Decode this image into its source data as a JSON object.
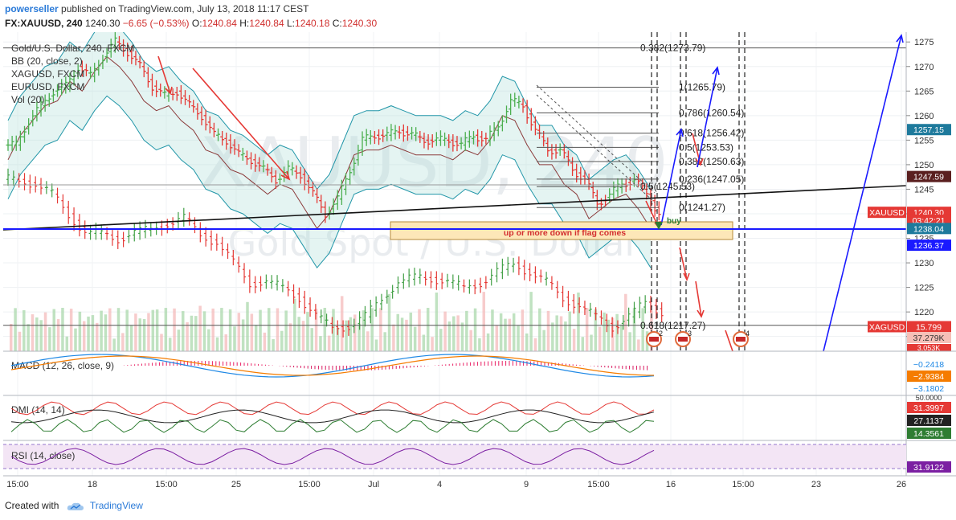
{
  "header": {
    "author": "powerseller",
    "published": "published on TradingView.com, July 13, 2018 11:17 CEST",
    "symbol": "FX:XAUUSD, 240",
    "last": "1240.30",
    "change": "−6.65 (−0.53%)",
    "o_label": "O:",
    "o_value": "1240.84",
    "h_label": "H:",
    "h_value": "1240.84",
    "l_label": "L:",
    "l_value": "1240.18",
    "c_label": "C:",
    "c_value": "1240.30"
  },
  "legend": [
    "Gold/U.S. Dollar, 240, FXCM",
    "BB (20, close, 2)",
    "XAGUSD, FXCM",
    "EURUSD, FXCM",
    "Vol (20)"
  ],
  "watermark": {
    "symbol": "XAUUSD, 240",
    "name": "Gold Spot / U.S. Dollar"
  },
  "annotations": {
    "buy": "buy",
    "zone": "up or more down if flag comes",
    "wave_labels": [
      "2",
      "3",
      "4"
    ]
  },
  "fib_levels": [
    {
      "label": "0.382(1273.79)",
      "price": 1273.79
    },
    {
      "label": "1(1265.79)",
      "price": 1265.79
    },
    {
      "label": "0.786(1260.54)",
      "price": 1260.54
    },
    {
      "label": "0.618(1256.42)",
      "price": 1256.42
    },
    {
      "label": "0.5(1253.53)",
      "price": 1253.53
    },
    {
      "label": "0.382(1250.63)",
      "price": 1250.63
    },
    {
      "label": "0.236(1247.05)",
      "price": 1247.05
    },
    {
      "label": "0.5(1245.53)",
      "price": 1245.53
    },
    {
      "label": "0(1241.27)",
      "price": 1241.27
    },
    {
      "label": "0.618(1217.27)",
      "price": 1217.27
    }
  ],
  "price_badges": [
    {
      "text": "1257.15",
      "price": 1257.15,
      "color": "#1e7a9c"
    },
    {
      "text": "1247.59",
      "price": 1247.59,
      "color": "#5a1f1f"
    },
    {
      "text": "XAUUSD",
      "price": 1240.3,
      "color": "#e53935",
      "left": true
    },
    {
      "text": "1240.30",
      "price": 1240.3,
      "color": "#e53935"
    },
    {
      "text": "03:42:21",
      "price": 1238.7,
      "color": "#e53935"
    },
    {
      "text": "1238.04",
      "price": 1237.0,
      "color": "#1e7a9c"
    },
    {
      "text": "1236.37",
      "price": 1233.6,
      "color": "#1a1aff"
    },
    {
      "text": "XAGUSD",
      "price": 1217.0,
      "color": "#e53935",
      "left": true
    },
    {
      "text": "15.799",
      "price": 1217.0,
      "color": "#e53935"
    }
  ],
  "vol_badge": {
    "text": "37.279K"
  },
  "vol_badge2": {
    "text": "3.053K"
  },
  "macd": {
    "title": "MACD (12, 26, close, 9)",
    "values": [
      {
        "text": "−0.2418",
        "color": "#1e88e5"
      },
      {
        "text": "−2.9384",
        "color": "#f57c00"
      },
      {
        "text": "−3.1802",
        "color": "#1e88e5"
      }
    ]
  },
  "dmi": {
    "title": "DMI (14, 14)",
    "scale": "50.0000",
    "values": [
      {
        "text": "31.3997",
        "color": "#e53935"
      },
      {
        "text": "27.1137",
        "color": "#222222"
      },
      {
        "text": "14.3561",
        "color": "#2e7d32"
      }
    ]
  },
  "rsi": {
    "title": "RSI (14, close)",
    "value": {
      "text": "31.9122",
      "color": "#7b1fa2"
    }
  },
  "time_axis": [
    "15:00",
    "18",
    "15:00",
    "25",
    "15:00",
    "Jul",
    "4",
    "9",
    "15:00",
    "16",
    "15:00",
    "23",
    "26"
  ],
  "footer": {
    "created": "Created with",
    "brand": "TradingView"
  },
  "chart_data": {
    "type": "candlestick",
    "title": "Gold/U.S. Dollar, 240, FXCM",
    "ylim": [
      1212,
      1277
    ],
    "yticks": [
      1215,
      1220,
      1225,
      1230,
      1235,
      1240,
      1245,
      1250,
      1255,
      1260,
      1265,
      1270,
      1275
    ],
    "x_tick_labels": [
      "15:00",
      "18",
      "15:00",
      "25",
      "15:00",
      "Jul",
      "4",
      "9",
      "15:00",
      "16",
      "15:00",
      "23",
      "26"
    ],
    "xagusd_close_path": [
      1247,
      1246,
      1244,
      1240,
      1236,
      1236,
      1235,
      1236,
      1237,
      1238,
      1239,
      1236,
      1234,
      1230,
      1226,
      1226,
      1225,
      1223,
      1219,
      1217,
      1217,
      1219,
      1223,
      1226,
      1227,
      1227,
      1226,
      1225,
      1226,
      1228,
      1230,
      1228,
      1226,
      1223,
      1221,
      1219,
      1217,
      1219,
      1222,
      1220
    ],
    "xauusd_close_path": [
      1254,
      1259,
      1262,
      1265,
      1266,
      1270,
      1268,
      1272,
      1275,
      1273,
      1270,
      1266,
      1264,
      1265,
      1262,
      1260,
      1256,
      1255,
      1252,
      1251,
      1249,
      1247,
      1249,
      1248,
      1244,
      1240,
      1243,
      1249,
      1255,
      1256,
      1256,
      1257,
      1256,
      1255,
      1255,
      1255,
      1254,
      1256,
      1255,
      1258,
      1263,
      1262,
      1257,
      1253,
      1253,
      1249,
      1247,
      1242,
      1244,
      1246,
      1247,
      1244,
      1240
    ]
  }
}
